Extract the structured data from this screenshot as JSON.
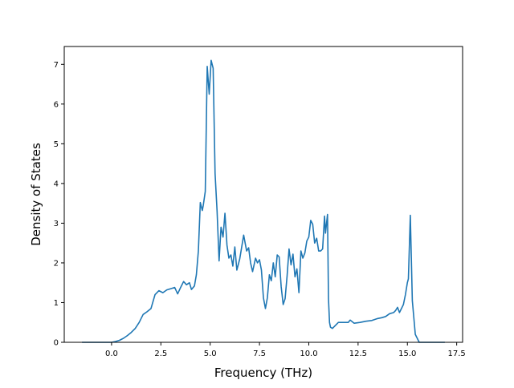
{
  "chart_data": {
    "type": "line",
    "title": "",
    "xlabel": "Frequency (THz)",
    "ylabel": "Density of States",
    "xlim": [
      -2.4,
      17.8
    ],
    "ylim": [
      0,
      7.45
    ],
    "grid": false,
    "legend": "none",
    "colors": {
      "line": "#1f77b4",
      "axes": "#000000",
      "background": "#ffffff"
    },
    "xticks": [
      0.0,
      2.5,
      5.0,
      7.5,
      10.0,
      12.5,
      15.0,
      17.5
    ],
    "xtick_labels": [
      "0.0",
      "2.5",
      "5.0",
      "7.5",
      "10.0",
      "12.5",
      "15.0",
      "17.5"
    ],
    "yticks": [
      0,
      1,
      2,
      3,
      4,
      5,
      6,
      7
    ],
    "ytick_labels": [
      "0",
      "1",
      "2",
      "3",
      "4",
      "5",
      "6",
      "7"
    ],
    "series": [
      {
        "x": [
          -1.5,
          -1.0,
          -0.5,
          0.0,
          0.2,
          0.4,
          0.6,
          0.8,
          1.0,
          1.2,
          1.4,
          1.6,
          1.8,
          2.0,
          2.2,
          2.4,
          2.6,
          2.8,
          3.0,
          3.2,
          3.35,
          3.5,
          3.65,
          3.8,
          3.95,
          4.05,
          4.2,
          4.3,
          4.4,
          4.5,
          4.6,
          4.65,
          4.75,
          4.85,
          4.95,
          5.05,
          5.15,
          5.25,
          5.35,
          5.45,
          5.55,
          5.65,
          5.75,
          5.85,
          5.95,
          6.05,
          6.15,
          6.25,
          6.35,
          6.5,
          6.7,
          6.85,
          6.95,
          7.05,
          7.15,
          7.3,
          7.4,
          7.5,
          7.6,
          7.7,
          7.8,
          7.9,
          8.0,
          8.1,
          8.2,
          8.3,
          8.4,
          8.5,
          8.6,
          8.7,
          8.8,
          8.9,
          9.0,
          9.1,
          9.2,
          9.3,
          9.4,
          9.5,
          9.6,
          9.7,
          9.8,
          9.9,
          10.0,
          10.1,
          10.2,
          10.3,
          10.4,
          10.5,
          10.6,
          10.7,
          10.8,
          10.85,
          10.9,
          10.95,
          11.0,
          11.05,
          11.1,
          11.2,
          11.3,
          11.5,
          11.8,
          12.0,
          12.1,
          12.3,
          12.6,
          12.9,
          13.2,
          13.5,
          13.7,
          13.9,
          14.1,
          14.3,
          14.4,
          14.5,
          14.6,
          14.8,
          14.9,
          15.0,
          15.05,
          15.15,
          15.25,
          15.4,
          15.6,
          16.0,
          16.5,
          16.9
        ],
        "y": [
          0.0,
          0.0,
          0.0,
          0.0,
          0.02,
          0.05,
          0.1,
          0.17,
          0.25,
          0.35,
          0.5,
          0.7,
          0.77,
          0.85,
          1.2,
          1.3,
          1.25,
          1.32,
          1.35,
          1.38,
          1.22,
          1.38,
          1.53,
          1.45,
          1.5,
          1.33,
          1.42,
          1.7,
          2.3,
          3.52,
          3.32,
          3.45,
          3.8,
          6.95,
          6.25,
          7.1,
          6.9,
          4.25,
          3.3,
          2.05,
          2.9,
          2.65,
          3.25,
          2.45,
          2.12,
          2.2,
          1.92,
          2.4,
          1.82,
          2.1,
          2.7,
          2.3,
          2.38,
          2.0,
          1.78,
          2.12,
          2.0,
          2.08,
          1.82,
          1.12,
          0.85,
          1.12,
          1.7,
          1.55,
          2.0,
          1.65,
          2.2,
          2.15,
          1.4,
          0.95,
          1.1,
          1.68,
          2.35,
          1.95,
          2.22,
          1.65,
          1.85,
          1.25,
          2.3,
          2.12,
          2.25,
          2.55,
          2.65,
          3.07,
          2.97,
          2.5,
          2.62,
          2.3,
          2.3,
          2.35,
          3.18,
          2.75,
          3.0,
          3.22,
          1.1,
          0.5,
          0.38,
          0.35,
          0.4,
          0.5,
          0.5,
          0.5,
          0.56,
          0.48,
          0.5,
          0.53,
          0.55,
          0.6,
          0.62,
          0.65,
          0.72,
          0.75,
          0.8,
          0.88,
          0.75,
          0.95,
          1.2,
          1.5,
          1.6,
          3.2,
          1.05,
          0.2,
          0.0,
          0.0,
          0.0,
          0.0
        ]
      }
    ]
  }
}
